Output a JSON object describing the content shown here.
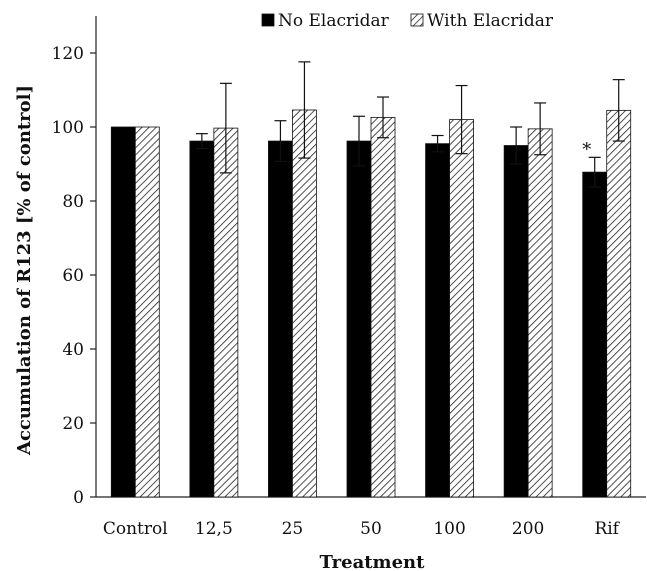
{
  "chart_data": {
    "type": "bar",
    "title": "",
    "xlabel": "Treatment",
    "ylabel": "Accumulation of R123 [% of control]",
    "categories": [
      "Control",
      "12,5",
      "25",
      "50",
      "100",
      "200",
      "Rif"
    ],
    "series": [
      {
        "name": "No Elacridar",
        "values": [
          100,
          96.2,
          96.2,
          96.2,
          95.5,
          95.0,
          87.8
        ],
        "errors": [
          0,
          2.0,
          5.5,
          6.7,
          2.2,
          5.0,
          4.0
        ],
        "color": "#000000",
        "fill_style": "solid"
      },
      {
        "name": "With Elacridar",
        "values": [
          100,
          99.7,
          104.6,
          102.6,
          102.0,
          99.5,
          104.5
        ],
        "errors": [
          0,
          12.1,
          13.0,
          5.5,
          9.2,
          7.0,
          8.3
        ],
        "color": "#000000",
        "fill_style": "diagonal-hatch"
      }
    ],
    "annotations": [
      {
        "text": "*",
        "category": "Rif",
        "series": "No Elacridar"
      }
    ],
    "yticks": [
      0,
      20,
      40,
      60,
      80,
      100,
      120
    ],
    "ylim": [
      0,
      130
    ],
    "grid": false,
    "legend_position": "top-right"
  }
}
